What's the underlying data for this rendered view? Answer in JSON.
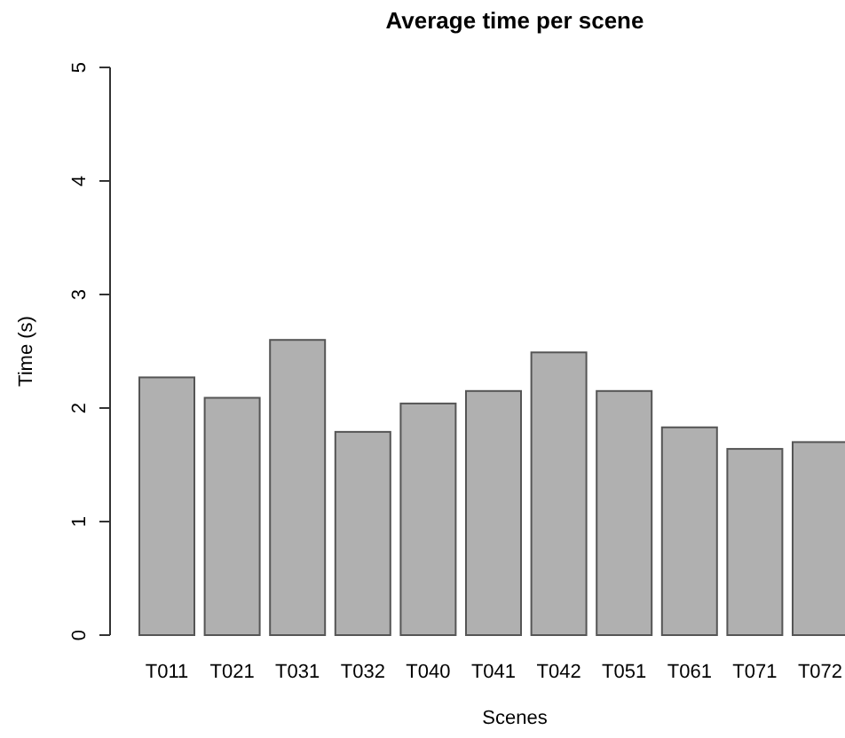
{
  "chart_data": {
    "type": "bar",
    "title": "Average time per scene",
    "xlabel": "Scenes",
    "ylabel": "Time (s)",
    "categories": [
      "T011",
      "T021",
      "T031",
      "T032",
      "T040",
      "T041",
      "T042",
      "T051",
      "T061",
      "T071",
      "T072"
    ],
    "values": [
      2.27,
      2.09,
      2.6,
      1.79,
      2.04,
      2.15,
      2.49,
      2.15,
      1.83,
      1.64,
      1.7
    ],
    "color": "#b0b0b0",
    "ylim": [
      0,
      5
    ],
    "yticks": [
      0,
      1,
      2,
      3,
      4,
      5
    ]
  }
}
